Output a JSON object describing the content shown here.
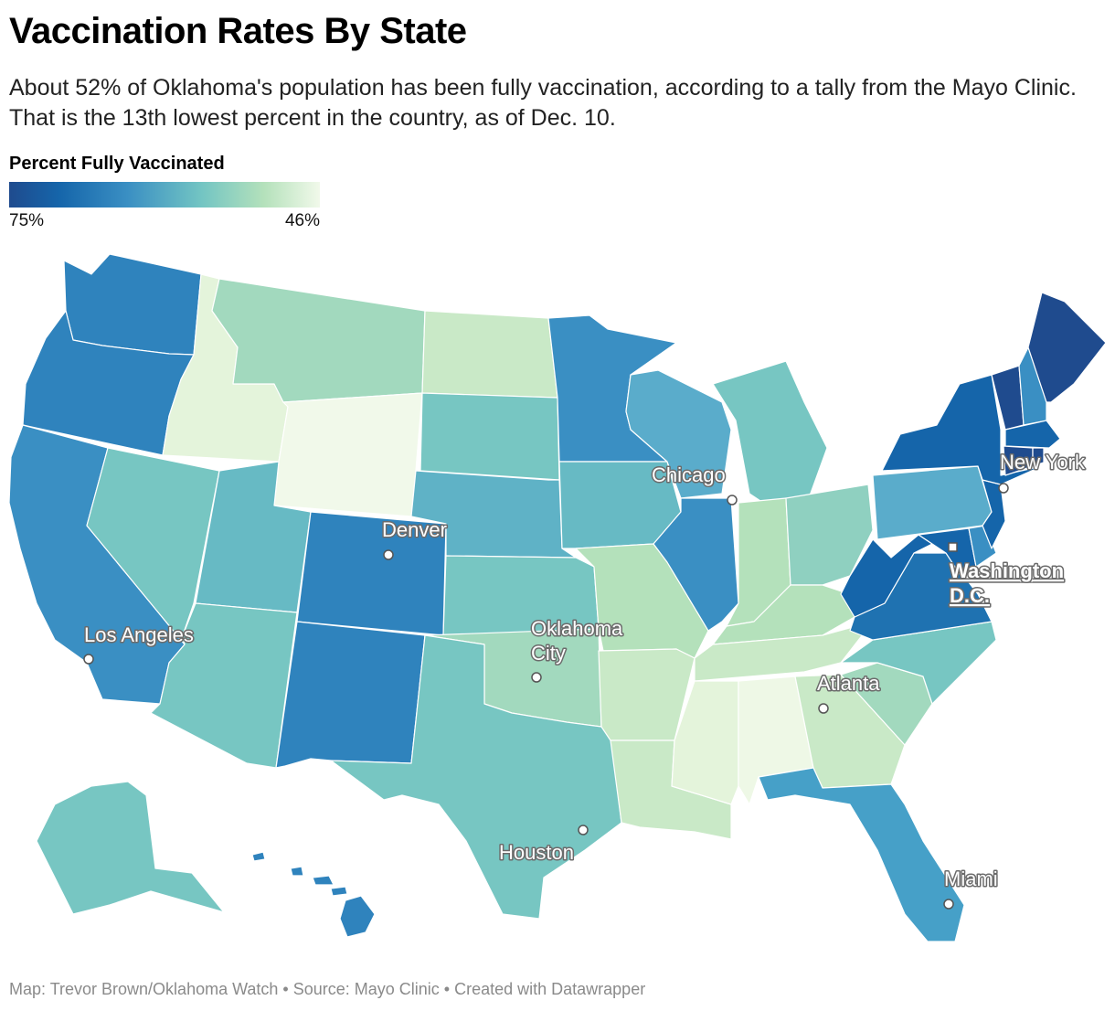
{
  "header": {
    "title": "Vaccination Rates By State",
    "subtitle": "About 52% of Oklahoma's population has been fully vaccination, according to a tally from the Mayo Clinic. That is the 13th lowest percent in the country, as of Dec. 10."
  },
  "legend": {
    "title": "Percent Fully Vaccinated",
    "max_label": "75%",
    "min_label": "46%",
    "colors": [
      "#1f4b8e",
      "#1565aa",
      "#3a8fc3",
      "#73c5c3",
      "#b4e1bb",
      "#f1f9ea"
    ]
  },
  "map": {
    "states": [
      {
        "name": "Washington",
        "color": "#2f83bd"
      },
      {
        "name": "Oregon",
        "color": "#2f83bd"
      },
      {
        "name": "California",
        "color": "#3a8fc3"
      },
      {
        "name": "Idaho",
        "color": "#e4f4db"
      },
      {
        "name": "Nevada",
        "color": "#77c6c2"
      },
      {
        "name": "Montana",
        "color": "#a2d9be"
      },
      {
        "name": "Wyoming",
        "color": "#f1f9ea"
      },
      {
        "name": "Utah",
        "color": "#67bac4"
      },
      {
        "name": "Arizona",
        "color": "#77c6c2"
      },
      {
        "name": "Colorado",
        "color": "#2f83bd"
      },
      {
        "name": "New Mexico",
        "color": "#2f83bd"
      },
      {
        "name": "North Dakota",
        "color": "#c9e9c7"
      },
      {
        "name": "South Dakota",
        "color": "#77c6c2"
      },
      {
        "name": "Nebraska",
        "color": "#5fb2c6"
      },
      {
        "name": "Kansas",
        "color": "#77c6c2"
      },
      {
        "name": "Oklahoma",
        "color": "#a2d9be"
      },
      {
        "name": "Texas",
        "color": "#77c6c2"
      },
      {
        "name": "Minnesota",
        "color": "#3a8fc3"
      },
      {
        "name": "Iowa",
        "color": "#67bac4"
      },
      {
        "name": "Missouri",
        "color": "#b4e1bb"
      },
      {
        "name": "Arkansas",
        "color": "#c9e9c7"
      },
      {
        "name": "Louisiana",
        "color": "#c9e9c7"
      },
      {
        "name": "Wisconsin",
        "color": "#5aaccb"
      },
      {
        "name": "Illinois",
        "color": "#3a8fc3"
      },
      {
        "name": "Michigan",
        "color": "#77c6c2"
      },
      {
        "name": "Indiana",
        "color": "#b4e1bb"
      },
      {
        "name": "Ohio",
        "color": "#8fd0c0"
      },
      {
        "name": "Kentucky",
        "color": "#b4e1bb"
      },
      {
        "name": "Tennessee",
        "color": "#c9e9c7"
      },
      {
        "name": "Mississippi",
        "color": "#e4f4db"
      },
      {
        "name": "Alabama",
        "color": "#eef8e6"
      },
      {
        "name": "Georgia",
        "color": "#c9e9c7"
      },
      {
        "name": "Florida",
        "color": "#46a0c8"
      },
      {
        "name": "South Carolina",
        "color": "#a2d9be"
      },
      {
        "name": "North Carolina",
        "color": "#77c6c2"
      },
      {
        "name": "Virginia",
        "color": "#1f72b1"
      },
      {
        "name": "West Virginia",
        "color": "#1565aa"
      },
      {
        "name": "Pennsylvania",
        "color": "#5aaccb"
      },
      {
        "name": "New York",
        "color": "#1565aa"
      },
      {
        "name": "New Jersey",
        "color": "#1565aa"
      },
      {
        "name": "Maryland",
        "color": "#1565aa"
      },
      {
        "name": "Delaware",
        "color": "#3a8fc3"
      },
      {
        "name": "Vermont",
        "color": "#1f4b8e"
      },
      {
        "name": "New Hampshire",
        "color": "#3a8fc3"
      },
      {
        "name": "Maine",
        "color": "#1f4b8e"
      },
      {
        "name": "Massachusetts",
        "color": "#1565aa"
      },
      {
        "name": "Connecticut",
        "color": "#1f4b8e"
      },
      {
        "name": "Rhode Island",
        "color": "#1f4b8e"
      },
      {
        "name": "Alaska",
        "color": "#77c6c2"
      },
      {
        "name": "Hawaii",
        "color": "#2f83bd"
      }
    ],
    "cities": [
      {
        "name": "Los Angeles"
      },
      {
        "name": "Denver"
      },
      {
        "name": "Oklahoma City"
      },
      {
        "name": "Houston"
      },
      {
        "name": "Chicago"
      },
      {
        "name": "Atlanta"
      },
      {
        "name": "New York"
      },
      {
        "name": "Washington D.C."
      },
      {
        "name": "Miami"
      }
    ],
    "city_label_lines": {
      "okc_line1": "Oklahoma",
      "okc_line2": "City",
      "dc_line1": "Washington",
      "dc_line2": "D.C."
    }
  },
  "footer": {
    "credit": "Map: Trevor Brown/Oklahoma Watch • Source: Mayo Clinic • Created with Datawrapper"
  }
}
